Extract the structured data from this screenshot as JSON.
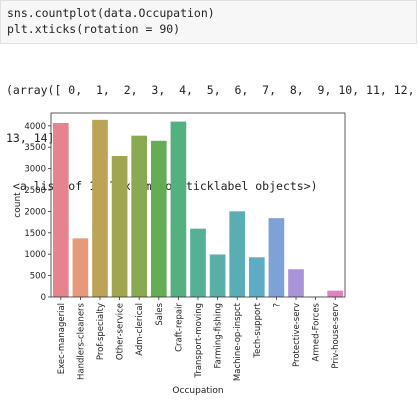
{
  "code_cell": {
    "lines": [
      "sns.countplot(data.Occupation)",
      "plt.xticks(rotation = 90)"
    ]
  },
  "output": {
    "lines": [
      "(array([ 0,  1,  2,  3,  4,  5,  6,  7,  8,  9, 10, 11, 12,",
      "13, 14]),",
      " <a list of 15 Text major ticklabel objects>)"
    ]
  },
  "chart_data": {
    "type": "bar",
    "categories": [
      "Exec-managerial",
      "Handlers-cleaners",
      "Prof-specialty",
      "Other-service",
      "Adm-clerical",
      "Sales",
      "Craft-repair",
      "Transport-moving",
      "Farming-fishing",
      "Machine-op-inspct",
      "Tech-support",
      "?",
      "Protective-serv",
      "Armed-Forces",
      "Priv-house-serv"
    ],
    "values": [
      4066,
      1370,
      4140,
      3295,
      3770,
      3650,
      4099,
      1597,
      994,
      2002,
      928,
      1843,
      649,
      9,
      149
    ],
    "colors": [
      "#e5848c",
      "#e69a7a",
      "#bba357",
      "#a0a552",
      "#8aaa52",
      "#64ad55",
      "#54b07e",
      "#56b096",
      "#59afa6",
      "#5aaeb3",
      "#5dabc4",
      "#7ea2d6",
      "#a894d6",
      "#cc86cf",
      "#de83bd"
    ],
    "xlabel": "Occupation",
    "ylabel": "count",
    "ylim": [
      0,
      4300
    ],
    "yticks": [
      0,
      500,
      1000,
      1500,
      2000,
      2500,
      3000,
      3500,
      4000
    ]
  }
}
